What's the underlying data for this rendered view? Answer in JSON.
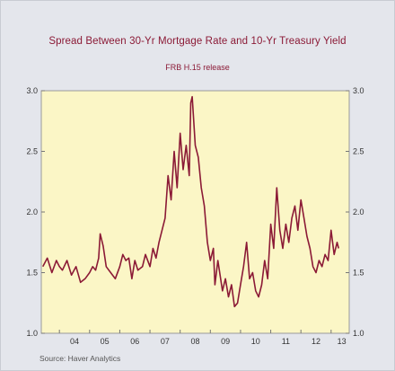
{
  "title": "Spread Between 30-Yr Mortgage Rate and 10-Yr Treasury Yield",
  "subtitle": "FRB H.15 release",
  "source": "Source: Haver Analytics",
  "colors": {
    "line": "#8b1a36",
    "plot_bg": "#fbf6c6",
    "text": "#8b1a36"
  },
  "chart_data": {
    "type": "line",
    "title": "Spread Between 30-Yr Mortgage Rate and 10-Yr Treasury Yield",
    "xlabel": "",
    "ylabel": "",
    "ylim": [
      1.0,
      3.0
    ],
    "xlim": [
      2003.4,
      2013.6
    ],
    "yticks": [
      1.0,
      1.5,
      2.0,
      2.5,
      3.0
    ],
    "ytick_labels": [
      "1.0",
      "1.5",
      "2.0",
      "2.5",
      "3.0"
    ],
    "xtick_labels": [
      "04",
      "05",
      "06",
      "07",
      "08",
      "09",
      "10",
      "11",
      "12",
      "13"
    ],
    "xtick_years": [
      2004,
      2005,
      2006,
      2007,
      2008,
      2009,
      2010,
      2011,
      2012,
      2013
    ],
    "grid": false,
    "legend": "none",
    "series": [
      {
        "x": [
          2003.45,
          2003.6,
          2003.75,
          2003.9,
          2004.0,
          2004.1,
          2004.25,
          2004.4,
          2004.55,
          2004.7,
          2004.85,
          2005.0,
          2005.1,
          2005.2,
          2005.3,
          2005.35,
          2005.45,
          2005.55,
          2005.7,
          2005.85,
          2006.0,
          2006.1,
          2006.2,
          2006.3,
          2006.4,
          2006.5,
          2006.6,
          2006.75,
          2006.85,
          2007.0,
          2007.1,
          2007.2,
          2007.3,
          2007.4,
          2007.5,
          2007.6,
          2007.7,
          2007.8,
          2007.9,
          2008.0,
          2008.1,
          2008.2,
          2008.3,
          2008.35,
          2008.4,
          2008.5,
          2008.6,
          2008.7,
          2008.8,
          2008.9,
          2009.0,
          2009.1,
          2009.15,
          2009.25,
          2009.4,
          2009.5,
          2009.6,
          2009.7,
          2009.8,
          2009.9,
          2010.0,
          2010.1,
          2010.2,
          2010.3,
          2010.4,
          2010.5,
          2010.6,
          2010.7,
          2010.8,
          2010.9,
          2011.0,
          2011.1,
          2011.2,
          2011.3,
          2011.4,
          2011.5,
          2011.6,
          2011.7,
          2011.8,
          2011.9,
          2012.0,
          2012.1,
          2012.2,
          2012.3,
          2012.4,
          2012.5,
          2012.6,
          2012.7,
          2012.8,
          2012.9,
          2013.0,
          2013.1,
          2013.2,
          2013.25
        ],
        "values": [
          1.55,
          1.62,
          1.5,
          1.6,
          1.55,
          1.52,
          1.6,
          1.48,
          1.55,
          1.42,
          1.45,
          1.5,
          1.55,
          1.52,
          1.62,
          1.82,
          1.72,
          1.55,
          1.5,
          1.45,
          1.55,
          1.65,
          1.6,
          1.62,
          1.45,
          1.6,
          1.52,
          1.55,
          1.65,
          1.55,
          1.7,
          1.62,
          1.75,
          1.85,
          1.95,
          2.3,
          2.1,
          2.5,
          2.2,
          2.65,
          2.35,
          2.55,
          2.3,
          2.9,
          2.95,
          2.55,
          2.45,
          2.2,
          2.05,
          1.75,
          1.6,
          1.7,
          1.4,
          1.6,
          1.35,
          1.45,
          1.3,
          1.4,
          1.22,
          1.25,
          1.4,
          1.55,
          1.75,
          1.45,
          1.5,
          1.35,
          1.3,
          1.4,
          1.6,
          1.45,
          1.9,
          1.7,
          2.2,
          1.85,
          1.7,
          1.9,
          1.75,
          1.95,
          2.05,
          1.85,
          2.1,
          1.95,
          1.8,
          1.7,
          1.55,
          1.5,
          1.6,
          1.55,
          1.65,
          1.6,
          1.85,
          1.65,
          1.75,
          1.7
        ]
      }
    ]
  }
}
